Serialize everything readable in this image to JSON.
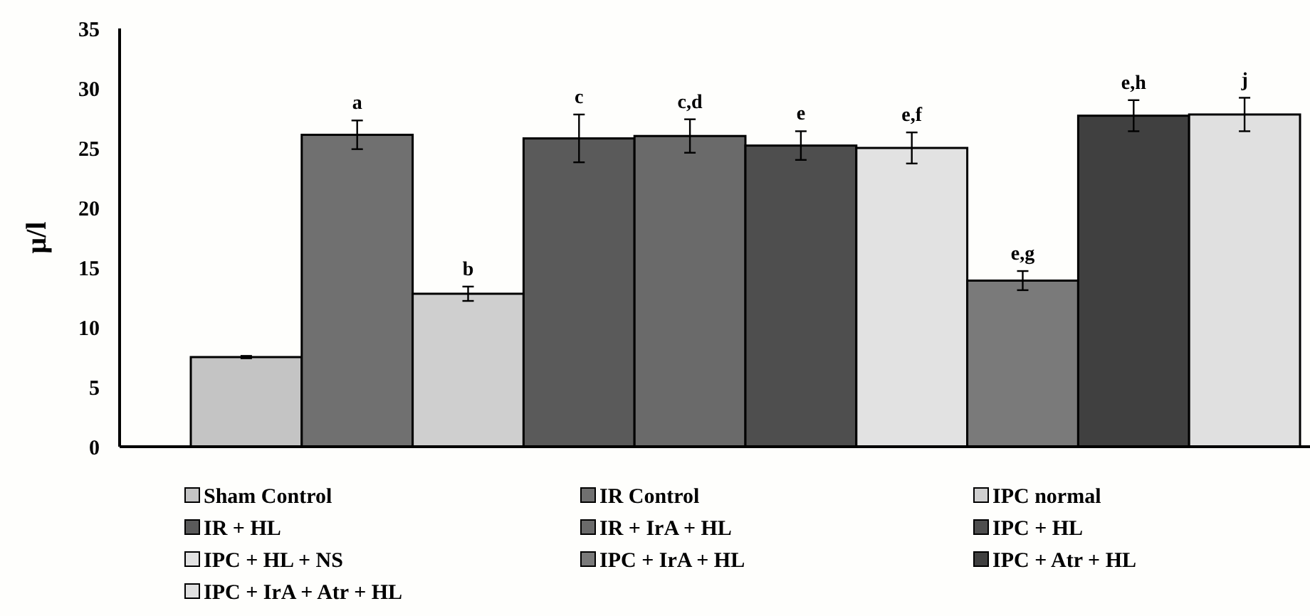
{
  "chart_data": {
    "type": "bar",
    "ylabel": "μ/l",
    "categories": [
      null
    ],
    "ylim": [
      0,
      35
    ],
    "yticks": [
      0,
      5,
      10,
      15,
      20,
      25,
      30,
      35
    ],
    "grid": false,
    "legend": "bottom",
    "series": [
      {
        "name": "Sham Control",
        "color": "#c4c4c4",
        "values": [
          7.5
        ],
        "errors": [
          0.1
        ]
      },
      {
        "name": "IR Control",
        "color": "#707070",
        "values": [
          26.1
        ],
        "errors": [
          1.2
        ]
      },
      {
        "name": "IPC normal",
        "color": "#cfcfcf",
        "values": [
          12.8
        ],
        "errors": [
          0.6
        ]
      },
      {
        "name": "IR + HL",
        "color": "#5a5a5a",
        "values": [
          25.8
        ],
        "errors": [
          2.0
        ]
      },
      {
        "name": "IR + IrA + HL",
        "color": "#6a6a6a",
        "values": [
          26.0
        ],
        "errors": [
          1.4
        ]
      },
      {
        "name": "IPC + HL",
        "color": "#4e4e4e",
        "values": [
          25.2
        ],
        "errors": [
          1.2
        ]
      },
      {
        "name": "IPC + HL + NS",
        "color": "#e2e2e2",
        "values": [
          25.0
        ],
        "errors": [
          1.3
        ]
      },
      {
        "name": "IPC + IrA + HL",
        "color": "#7a7a7a",
        "values": [
          13.9
        ],
        "errors": [
          0.8
        ]
      },
      {
        "name": "IPC + Atr + HL",
        "color": "#404040",
        "values": [
          27.7
        ],
        "errors": [
          1.3
        ]
      },
      {
        "name": "IPC + IrA + Atr + HL",
        "color": "#e0e0e0",
        "values": [
          27.8
        ],
        "errors": [
          1.4
        ]
      }
    ],
    "annotations": [
      {
        "text": "a",
        "y": 27.3
      },
      {
        "text": "b",
        "y": 13.4
      },
      {
        "text": "c",
        "y": 27.8
      },
      {
        "text": "c,d",
        "y": 27.4
      },
      {
        "text": "e",
        "y": 26.4
      },
      {
        "text": "e,f",
        "y": 26.3
      },
      {
        "text": "e,g",
        "y": 14.7
      },
      {
        "text": "e,h",
        "y": 29.0
      },
      {
        "text": "j",
        "y": 29.2
      }
    ]
  }
}
